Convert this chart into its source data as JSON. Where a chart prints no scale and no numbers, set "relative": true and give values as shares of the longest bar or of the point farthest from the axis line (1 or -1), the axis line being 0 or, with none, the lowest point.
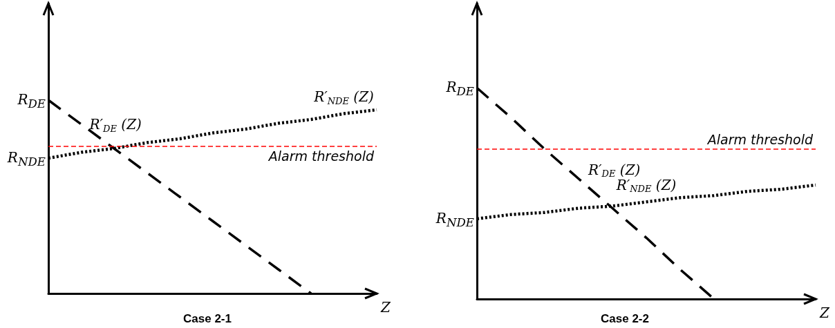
{
  "chart_data": [
    {
      "type": "line",
      "title": "Case 2-1",
      "xlabel": "Z",
      "relative": true,
      "marker": "none",
      "categories": [
        null,
        null,
        null,
        null,
        null,
        null,
        null,
        null,
        null,
        null,
        null
      ],
      "series": [
        {
          "name": "R′$_{DE}$ (Z)",
          "color": "#000000",
          "line_style": "dashed",
          "values": [
            1,
            0.875,
            0.75,
            0.625,
            0.5,
            0.375,
            0.25,
            0.125,
            0,
            null,
            null
          ]
        },
        {
          "name": "R′$_{NDE}$ (Z)",
          "color": "#000000",
          "line_style": "dotted",
          "values": [
            0.7,
            0.73,
            0.75,
            0.78,
            0.8,
            0.83,
            0.85,
            0.88,
            0.9,
            0.93,
            0.95
          ]
        }
      ],
      "ref_lines": [
        {
          "axis": "y",
          "value": 0.76,
          "label": "Alarm threshold",
          "color": "#ff0000",
          "line_style": "dashed"
        }
      ],
      "annotations": [
        "R$_{DE}$",
        "R$_{NDE}$"
      ]
    },
    {
      "type": "line",
      "title": "Case 2-2",
      "xlabel": "Z",
      "relative": true,
      "marker": "none",
      "categories": [
        null,
        null,
        null,
        null,
        null,
        null,
        null,
        null,
        null,
        null,
        null
      ],
      "series": [
        {
          "name": "R′$_{DE}$ (Z)",
          "color": "#000000",
          "line_style": "dashed",
          "values": [
            1,
            0.86,
            0.71,
            0.57,
            0.43,
            0.29,
            0.14,
            0,
            null,
            null,
            null
          ]
        },
        {
          "name": "R′$_{NDE}$ (Z)",
          "color": "#000000",
          "line_style": "dotted",
          "values": [
            0.38,
            0.4,
            0.41,
            0.43,
            0.44,
            0.46,
            0.48,
            0.49,
            0.51,
            0.52,
            0.54
          ]
        }
      ],
      "ref_lines": [
        {
          "axis": "y",
          "value": 0.71,
          "label": "Alarm threshold",
          "color": "#ff0000",
          "line_style": "dashed"
        }
      ],
      "annotations": [
        "R$_{DE}$",
        "R$_{NDE}$"
      ]
    }
  ]
}
